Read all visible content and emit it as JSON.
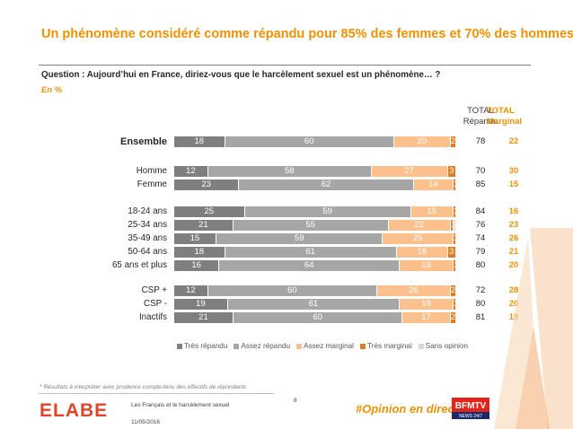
{
  "title": "Un phénomène considéré comme répandu pour 85% des femmes et 70% des hommes",
  "question": "Question : Aujourd’hui en France, diriez-vous que le harcèlement sexuel est un phénomène… ?",
  "unit": "En %",
  "columns": {
    "total_repandu_line1": "TOTAL",
    "total_repandu_line2": "Répandu",
    "total_marginal_line1": "TOTAL",
    "total_marginal_line2": "Marginal"
  },
  "colors": {
    "tres_repandu": "#7f7f7f",
    "assez_repandu": "#a6a6a6",
    "assez_marginal": "#fbc08c",
    "tres_marginal": "#e8791c",
    "sans_opinion": "#d9d9d9",
    "accent": "#f29100"
  },
  "chart_data": {
    "type": "bar",
    "orientation": "horizontal",
    "stacked": true,
    "categories": [
      "Ensemble",
      "Homme",
      "Femme",
      "18-24 ans",
      "25-34 ans",
      "35-49 ans",
      "50-64 ans",
      "65 ans et plus",
      "CSP +",
      "CSP -",
      "Inactifs"
    ],
    "series": [
      {
        "name": "Très répandu",
        "values": [
          18,
          12,
          23,
          25,
          21,
          15,
          18,
          16,
          12,
          19,
          21
        ]
      },
      {
        "name": "Assez répandu",
        "values": [
          60,
          58,
          62,
          59,
          55,
          59,
          61,
          64,
          60,
          61,
          60
        ]
      },
      {
        "name": "Assez marginal",
        "values": [
          20,
          27,
          14,
          15,
          22,
          25,
          18,
          19,
          26,
          19,
          17
        ]
      },
      {
        "name": "Très marginal",
        "values": [
          2,
          3,
          1,
          1,
          1,
          1,
          3,
          1,
          2,
          1,
          2
        ]
      },
      {
        "name": "Sans opinion",
        "values": [
          0,
          0,
          0,
          0,
          1,
          0,
          0,
          0,
          0,
          0,
          0
        ]
      }
    ],
    "total_repandu": [
      78,
      70,
      85,
      84,
      76,
      74,
      79,
      80,
      72,
      80,
      81
    ],
    "total_marginal": [
      22,
      30,
      15,
      16,
      23,
      26,
      21,
      20,
      28,
      20,
      19
    ],
    "xlim": [
      0,
      100
    ],
    "legend_position": "bottom"
  },
  "footer": {
    "footnote": "* Résultats à interpréter avec prudence compte-tenu des effectifs de répondants",
    "logo": "ELABE",
    "study": "Les Français et le harcèlement sexuel",
    "date": "11/05/2016",
    "page": "8",
    "hashtag": "#Opinion en direct",
    "bfm_logo": "BFMTV"
  }
}
